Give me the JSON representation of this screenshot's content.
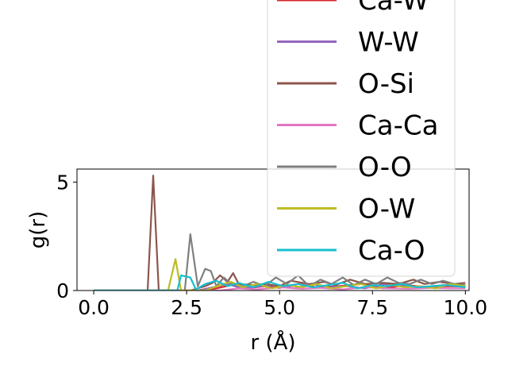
{
  "chart_data": {
    "type": "line",
    "xlabel": "r (Å)",
    "ylabel": "g(r)",
    "xlim": [
      -0.45,
      10.1
    ],
    "ylim": [
      0,
      5.6
    ],
    "xticks": [
      0.0,
      2.5,
      5.0,
      7.5,
      10.0
    ],
    "xtick_labels": [
      "0.0",
      "2.5",
      "5.0",
      "7.5",
      "10.0"
    ],
    "yticks": [
      0,
      5
    ],
    "ytick_labels": [
      "0",
      "5"
    ],
    "legend_placement": "upper-right, extending above the plot",
    "grid": false,
    "series": [
      {
        "name": "Ca-W",
        "color": "#d62728",
        "x": [
          0,
          3.0,
          3.3,
          3.7,
          4.1,
          4.6,
          5.0,
          5.5,
          6.0,
          6.6,
          7.2,
          7.8,
          8.4,
          9.0,
          9.5,
          10.0
        ],
        "y": [
          0,
          0,
          0.1,
          0.25,
          0.1,
          0.2,
          0.12,
          0.3,
          0.15,
          0.2,
          0.3,
          0.1,
          0.25,
          0.15,
          0.2,
          0.18
        ]
      },
      {
        "name": "W-W",
        "color": "#9467bd",
        "x": [
          0,
          2.8,
          3.2,
          3.6,
          4.0,
          4.5,
          5.0,
          5.4,
          5.9,
          6.3,
          6.8,
          7.3,
          7.8,
          8.3,
          8.9,
          9.4,
          10.0
        ],
        "y": [
          0,
          0,
          0.15,
          0.3,
          0.1,
          0.2,
          0.25,
          0.1,
          0.3,
          0.15,
          0.2,
          0.1,
          0.3,
          0.2,
          0.15,
          0.25,
          0.2
        ]
      },
      {
        "name": "O-Si",
        "color": "#8c564b",
        "x": [
          0,
          1.45,
          1.6,
          1.75,
          1.9,
          2.6,
          3.0,
          3.2,
          3.4,
          3.6,
          3.75,
          3.9,
          4.3,
          4.6,
          5.0,
          5.3,
          5.8,
          6.2,
          6.5,
          6.9,
          7.3,
          7.8,
          8.2,
          8.6,
          8.9,
          9.3,
          9.7,
          10.0
        ],
        "y": [
          0,
          0,
          5.3,
          0,
          0,
          0,
          0.2,
          0.35,
          0.7,
          0.4,
          0.8,
          0.3,
          0.25,
          0.3,
          0.2,
          0.45,
          0.3,
          0.4,
          0.25,
          0.5,
          0.3,
          0.35,
          0.3,
          0.5,
          0.3,
          0.4,
          0.3,
          0.35
        ]
      },
      {
        "name": "Ca-Ca",
        "color": "#e377c2",
        "x": [
          0,
          3.4,
          3.9,
          4.4,
          5.0,
          5.6,
          6.1,
          6.7,
          7.3,
          7.9,
          8.5,
          9.1,
          9.6,
          10.0
        ],
        "y": [
          0,
          0,
          0.1,
          0.05,
          0.15,
          0.08,
          0.12,
          0.05,
          0.15,
          0.1,
          0.08,
          0.12,
          0.1,
          0.1
        ]
      },
      {
        "name": "O-O",
        "color": "#7f7f7f",
        "x": [
          0,
          2.45,
          2.6,
          2.8,
          3.0,
          3.15,
          3.3,
          3.5,
          3.7,
          4.0,
          4.3,
          4.6,
          4.9,
          5.2,
          5.5,
          5.8,
          6.1,
          6.4,
          6.7,
          7.0,
          7.3,
          7.6,
          7.9,
          8.2,
          8.5,
          8.8,
          9.1,
          9.4,
          9.7,
          10.0
        ],
        "y": [
          0,
          0,
          2.6,
          0.2,
          1.0,
          0.9,
          0.2,
          0.6,
          0.3,
          0.2,
          0.4,
          0.2,
          0.6,
          0.3,
          0.7,
          0.2,
          0.5,
          0.3,
          0.6,
          0.25,
          0.5,
          0.3,
          0.6,
          0.35,
          0.3,
          0.5,
          0.3,
          0.45,
          0.3,
          0.25
        ]
      },
      {
        "name": "O-W",
        "color": "#bcbd22",
        "x": [
          0,
          2.0,
          2.2,
          2.35,
          2.5,
          3.0,
          3.4,
          3.7,
          4.0,
          4.4,
          4.8,
          5.2,
          5.6,
          6.0,
          6.4,
          6.8,
          7.2,
          7.6,
          8.0,
          8.4,
          8.8,
          9.2,
          9.6,
          10.0
        ],
        "y": [
          0,
          0,
          1.45,
          0,
          0,
          0,
          0.25,
          0.4,
          0.15,
          0.3,
          0.1,
          0.25,
          0.15,
          0.3,
          0.1,
          0.2,
          0.3,
          0.1,
          0.25,
          0.15,
          0.2,
          0.1,
          0.3,
          0.2
        ]
      },
      {
        "name": "Ca-O",
        "color": "#17becf",
        "x": [
          0,
          2.25,
          2.35,
          2.6,
          2.75,
          3.0,
          3.3,
          3.6,
          3.9,
          4.3,
          4.7,
          5.1,
          5.5,
          5.9,
          6.3,
          6.7,
          7.1,
          7.5,
          7.9,
          8.3,
          8.7,
          9.1,
          9.5,
          10.0
        ],
        "y": [
          0,
          0,
          0.7,
          0.6,
          0.05,
          0.3,
          0.45,
          0.2,
          0.35,
          0.15,
          0.4,
          0.2,
          0.3,
          0.15,
          0.25,
          0.35,
          0.1,
          0.25,
          0.2,
          0.3,
          0.15,
          0.2,
          0.25,
          0.15
        ]
      }
    ]
  }
}
